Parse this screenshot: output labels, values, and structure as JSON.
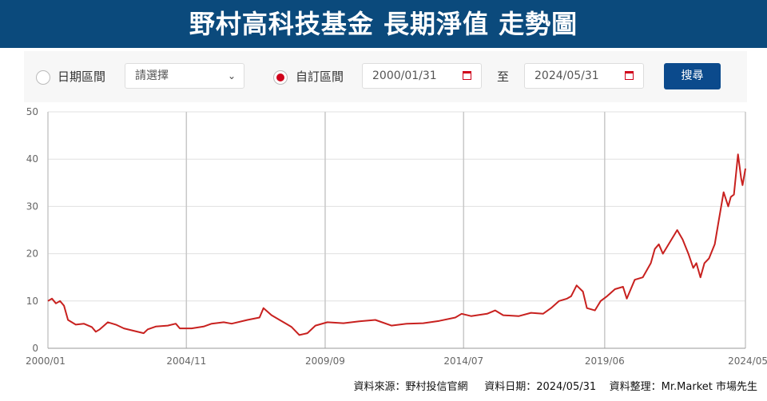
{
  "title": "野村高科技基金 長期淨值 走勢圖",
  "controls": {
    "period_radio_label": "日期區間",
    "period_select_value": "請選擇",
    "custom_radio_label": "自訂區間",
    "start_date": "2000/01/31",
    "to_label": "至",
    "end_date": "2024/05/31",
    "search_button": "搜尋",
    "selected_radio": "custom",
    "accent_color": "#d0021b"
  },
  "footer": {
    "source": "資料來源：野村投信官網",
    "date": "資料日期：2024/05/31",
    "compiled": "資料整理：Mr.Market 市場先生"
  },
  "chart_data": {
    "type": "line",
    "title": "",
    "xlabel": "",
    "ylabel": "",
    "ylim": [
      0,
      50
    ],
    "yticks": [
      0,
      10,
      20,
      30,
      40,
      50
    ],
    "xlim": [
      2000.0,
      2024.33
    ],
    "xticks": [
      {
        "label": "2000/01",
        "value": 2000.0
      },
      {
        "label": "2004/11",
        "value": 2004.83
      },
      {
        "label": "2009/09",
        "value": 2009.67
      },
      {
        "label": "2014/07",
        "value": 2014.5
      },
      {
        "label": "2019/06",
        "value": 2019.42
      },
      {
        "label": "2024/05",
        "value": 2024.33
      }
    ],
    "grid": true,
    "line_color": "#c8211f",
    "series": [
      {
        "x": [
          2000.0,
          2000.14,
          2000.28,
          2000.42,
          2000.56,
          2000.7,
          2000.97,
          2001.25,
          2001.53,
          2001.67,
          2001.81,
          2002.09,
          2002.37,
          2002.65,
          2002.92,
          2003.34,
          2003.48,
          2003.76,
          2004.18,
          2004.46,
          2004.6,
          2005.01,
          2005.43,
          2005.71,
          2006.13,
          2006.41,
          2006.96,
          2007.38,
          2007.52,
          2007.8,
          2008.08,
          2008.36,
          2008.5,
          2008.77,
          2009.05,
          2009.33,
          2009.75,
          2010.31,
          2010.86,
          2011.42,
          2011.98,
          2012.53,
          2013.09,
          2013.65,
          2014.21,
          2014.43,
          2014.76,
          2015.32,
          2015.6,
          2015.88,
          2016.43,
          2016.85,
          2017.27,
          2017.55,
          2017.83,
          2018.11,
          2018.25,
          2018.44,
          2018.66,
          2018.8,
          2019.08,
          2019.28,
          2019.5,
          2019.78,
          2020.06,
          2020.19,
          2020.33,
          2020.47,
          2020.75,
          2021.03,
          2021.17,
          2021.31,
          2021.45,
          2021.95,
          2022.14,
          2022.34,
          2022.51,
          2022.62,
          2022.76,
          2022.9,
          2023.06,
          2023.26,
          2023.4,
          2023.57,
          2023.73,
          2023.82,
          2023.93,
          2024.07,
          2024.18,
          2024.23,
          2024.33
        ],
        "values": [
          10,
          10.5,
          9.5,
          10,
          9,
          6,
          5,
          5.2,
          4.5,
          3.5,
          4,
          5.5,
          5,
          4.2,
          3.8,
          3.2,
          4,
          4.6,
          4.8,
          5.2,
          4.2,
          4.2,
          4.6,
          5.2,
          5.5,
          5.2,
          6,
          6.5,
          8.5,
          7,
          6,
          5,
          4.5,
          2.8,
          3.2,
          4.8,
          5.5,
          5.3,
          5.7,
          6,
          4.8,
          5.2,
          5.3,
          5.8,
          6.5,
          7.3,
          6.8,
          7.3,
          8,
          7,
          6.8,
          7.5,
          7.3,
          8.5,
          10,
          10.5,
          11,
          13.3,
          12,
          8.5,
          8,
          10,
          11,
          12.5,
          13,
          10.5,
          12.5,
          14.5,
          15,
          18,
          21,
          22,
          20,
          25,
          23,
          20,
          17,
          18,
          15,
          18,
          19,
          22,
          27,
          33,
          30,
          32,
          32.5,
          41,
          36,
          34.5,
          38
        ]
      }
    ]
  }
}
